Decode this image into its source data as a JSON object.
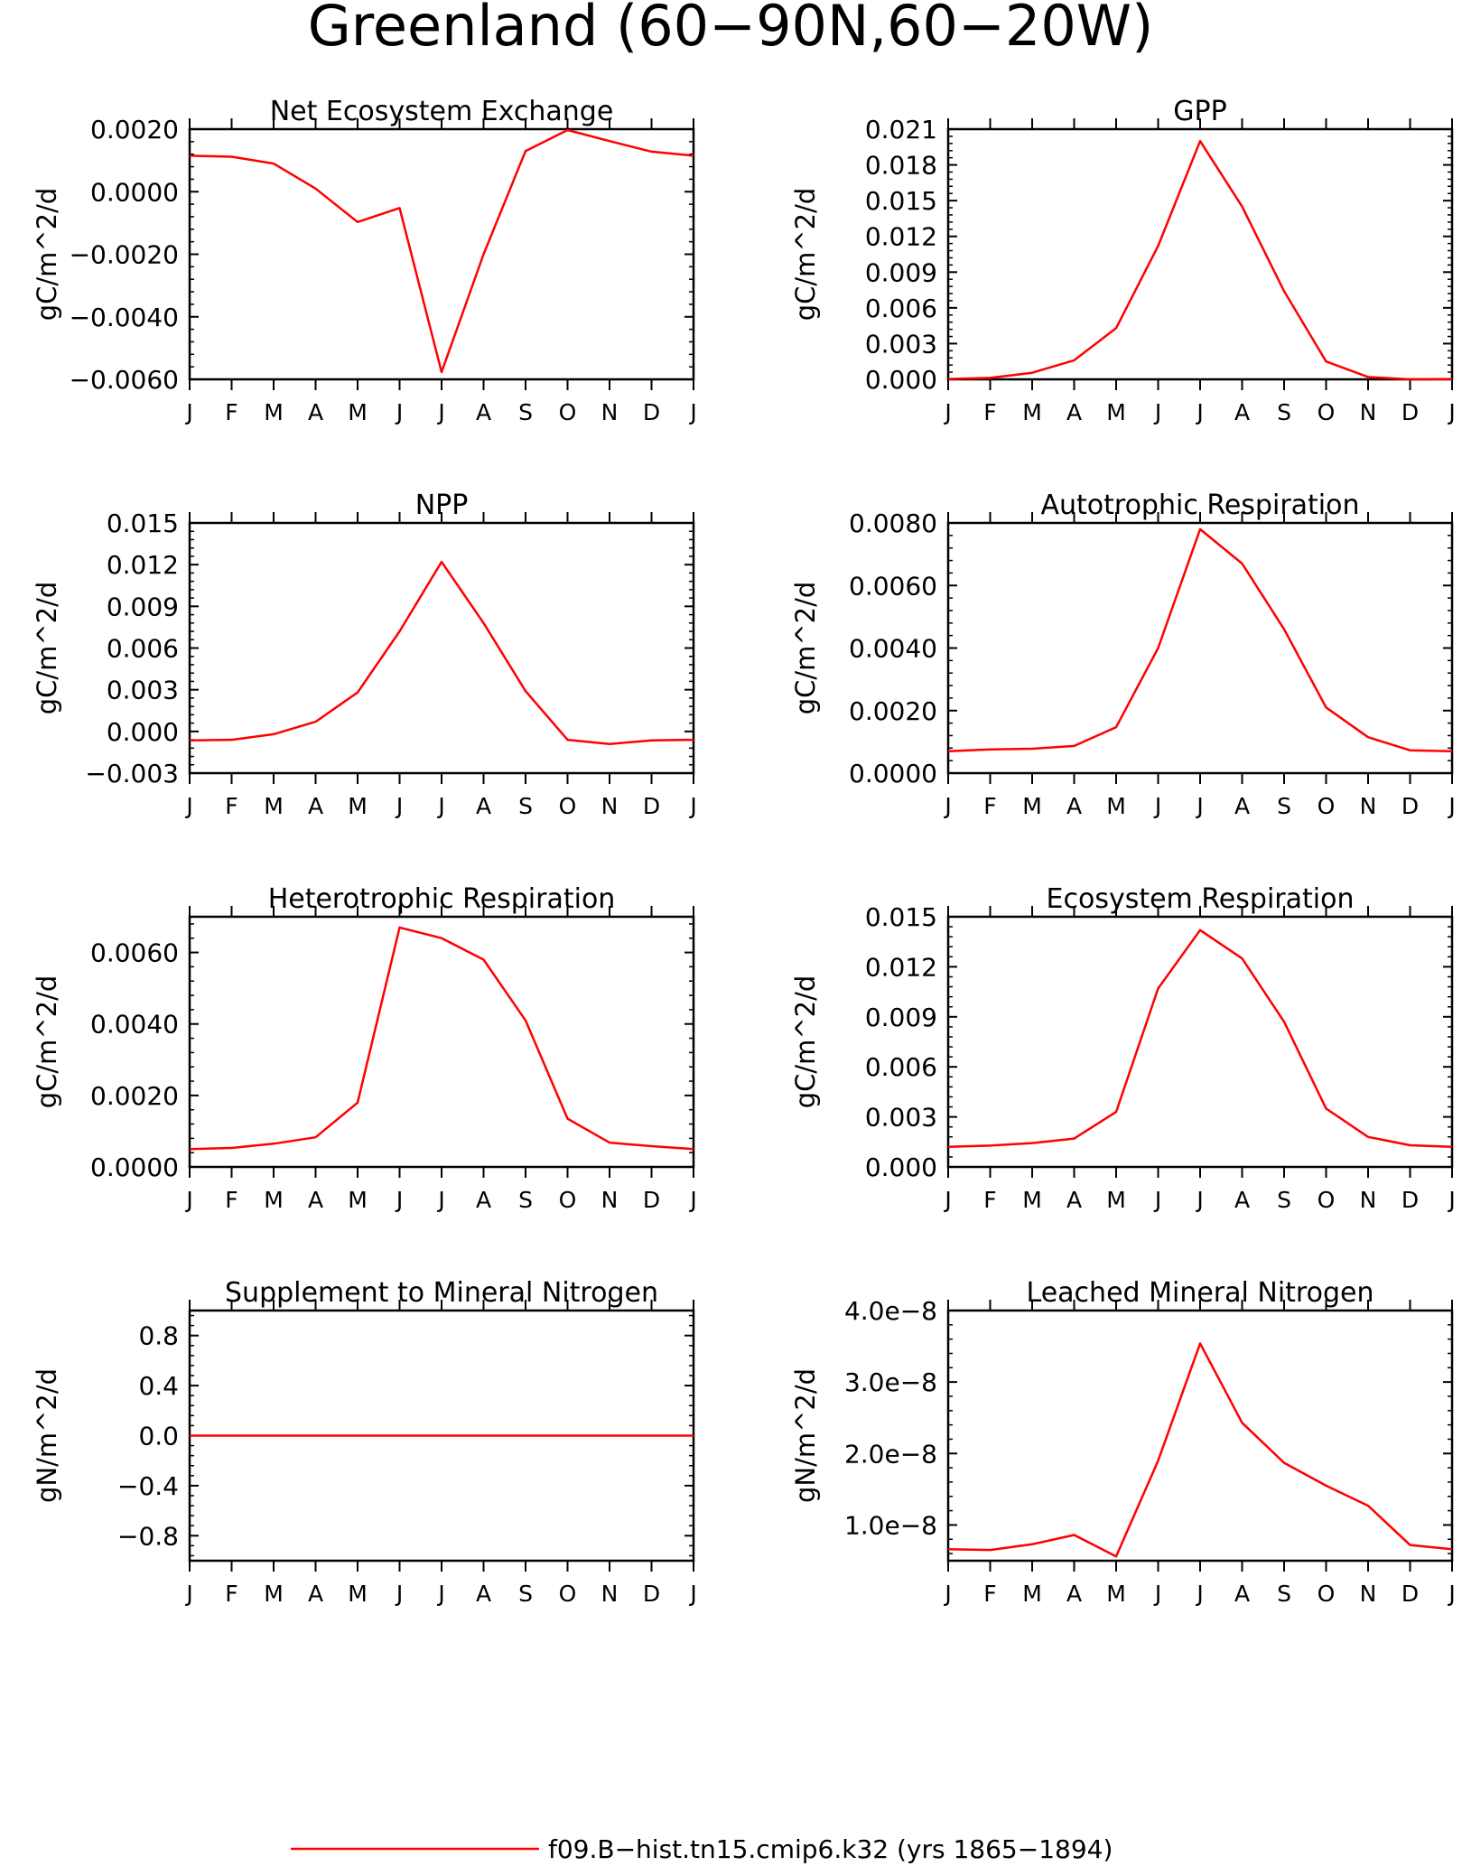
{
  "title": "Greenland (60−90N,60−20W)",
  "legend": {
    "label": "f09.B−hist.tn15.cmip6.k32 (yrs 1865−1894)",
    "color": "#ff0000"
  },
  "months": [
    "J",
    "F",
    "M",
    "A",
    "M",
    "J",
    "J",
    "A",
    "S",
    "O",
    "N",
    "D",
    "J"
  ],
  "line_color": "#ff0000",
  "chart_data": [
    {
      "type": "line",
      "title": "Net Ecosystem Exchange",
      "ylabel": "gC/m^2/d",
      "ylim": [
        -0.006,
        0.002
      ],
      "yticks": [
        -0.006,
        -0.004,
        -0.002,
        0.0,
        0.002
      ],
      "ytick_labels": [
        "−0.0060",
        "−0.0040",
        "−0.0020",
        "0.0000",
        "0.0020"
      ],
      "categories": [
        "J",
        "F",
        "M",
        "A",
        "M",
        "J",
        "J",
        "A",
        "S",
        "O",
        "N",
        "D",
        "J"
      ],
      "values": [
        0.00115,
        0.00112,
        0.0009,
        0.0001,
        -0.00097,
        -0.00052,
        -0.00577,
        -0.002,
        0.0013,
        0.00197,
        0.00162,
        0.00128,
        0.00115
      ]
    },
    {
      "type": "line",
      "title": "GPP",
      "ylabel": "gC/m^2/d",
      "ylim": [
        0.0,
        0.021
      ],
      "yticks": [
        0.0,
        0.003,
        0.006,
        0.009,
        0.012,
        0.015,
        0.018,
        0.021
      ],
      "ytick_labels": [
        "0.000",
        "0.003",
        "0.006",
        "0.009",
        "0.012",
        "0.015",
        "0.018",
        "0.021"
      ],
      "categories": [
        "J",
        "F",
        "M",
        "A",
        "M",
        "J",
        "J",
        "A",
        "S",
        "O",
        "N",
        "D",
        "J"
      ],
      "values": [
        3e-05,
        0.00012,
        0.00055,
        0.0016,
        0.0043,
        0.0112,
        0.02,
        0.0145,
        0.0074,
        0.0015,
        0.0002,
        0.0,
        3e-05
      ]
    },
    {
      "type": "line",
      "title": "NPP",
      "ylabel": "gC/m^2/d",
      "ylim": [
        -0.003,
        0.015
      ],
      "yticks": [
        -0.003,
        0.0,
        0.003,
        0.006,
        0.009,
        0.012,
        0.015
      ],
      "ytick_labels": [
        "−0.003",
        "0.000",
        "0.003",
        "0.006",
        "0.009",
        "0.012",
        "0.015"
      ],
      "categories": [
        "J",
        "F",
        "M",
        "A",
        "M",
        "J",
        "J",
        "A",
        "S",
        "O",
        "N",
        "D",
        "J"
      ],
      "values": [
        -0.00065,
        -0.0006,
        -0.0002,
        0.0007,
        0.0028,
        0.0072,
        0.0122,
        0.0078,
        0.0029,
        -0.0006,
        -0.0009,
        -0.00065,
        -0.0006
      ]
    },
    {
      "type": "line",
      "title": "Autotrophic Respiration",
      "ylabel": "gC/m^2/d",
      "ylim": [
        0.0,
        0.008
      ],
      "yticks": [
        0.0,
        0.002,
        0.004,
        0.006,
        0.008
      ],
      "ytick_labels": [
        "0.0000",
        "0.0020",
        "0.0040",
        "0.0060",
        "0.0080"
      ],
      "categories": [
        "J",
        "F",
        "M",
        "A",
        "M",
        "J",
        "J",
        "A",
        "S",
        "O",
        "N",
        "D",
        "J"
      ],
      "values": [
        0.0007,
        0.00076,
        0.00078,
        0.00087,
        0.00147,
        0.004,
        0.0078,
        0.0067,
        0.0046,
        0.0021,
        0.00115,
        0.00073,
        0.0007
      ]
    },
    {
      "type": "line",
      "title": "Heterotrophic Respiration",
      "ylabel": "gC/m^2/d",
      "ylim": [
        0.0,
        0.007
      ],
      "yticks": [
        0.0,
        0.002,
        0.004,
        0.006
      ],
      "ytick_labels": [
        "0.0000",
        "0.0020",
        "0.0040",
        "0.0060"
      ],
      "categories": [
        "J",
        "F",
        "M",
        "A",
        "M",
        "J",
        "J",
        "A",
        "S",
        "O",
        "N",
        "D",
        "J"
      ],
      "values": [
        0.0005,
        0.00053,
        0.00065,
        0.00083,
        0.0018,
        0.0067,
        0.0064,
        0.0058,
        0.0041,
        0.00135,
        0.00068,
        0.00058,
        0.0005
      ]
    },
    {
      "type": "line",
      "title": "Ecosystem Respiration",
      "ylabel": "gC/m^2/d",
      "ylim": [
        0.0,
        0.015
      ],
      "yticks": [
        0.0,
        0.003,
        0.006,
        0.009,
        0.012,
        0.015
      ],
      "ytick_labels": [
        "0.000",
        "0.003",
        "0.006",
        "0.009",
        "0.012",
        "0.015"
      ],
      "categories": [
        "J",
        "F",
        "M",
        "A",
        "M",
        "J",
        "J",
        "A",
        "S",
        "O",
        "N",
        "D",
        "J"
      ],
      "values": [
        0.0012,
        0.00128,
        0.00143,
        0.0017,
        0.0033,
        0.0107,
        0.0142,
        0.0125,
        0.0087,
        0.0035,
        0.0018,
        0.0013,
        0.0012
      ]
    },
    {
      "type": "line",
      "title": "Supplement to Mineral Nitrogen",
      "ylabel": "gN/m^2/d",
      "ylim": [
        -1.0,
        1.0
      ],
      "yticks": [
        -0.8,
        -0.4,
        0.0,
        0.4,
        0.8
      ],
      "ytick_labels": [
        "−0.8",
        "−0.4",
        "0.0",
        "0.4",
        "0.8"
      ],
      "categories": [
        "J",
        "F",
        "M",
        "A",
        "M",
        "J",
        "J",
        "A",
        "S",
        "O",
        "N",
        "D",
        "J"
      ],
      "values": [
        0,
        0,
        0,
        0,
        0,
        0,
        0,
        0,
        0,
        0,
        0,
        0,
        0
      ]
    },
    {
      "type": "line",
      "title": "Leached Mineral Nitrogen",
      "ylabel": "gN/m^2/d",
      "ylim": [
        5e-09,
        4e-08
      ],
      "yticks": [
        1e-08,
        2e-08,
        3e-08,
        4e-08
      ],
      "ytick_labels": [
        "1.0e−8",
        "2.0e−8",
        "3.0e−8",
        "4.0e−8"
      ],
      "categories": [
        "J",
        "F",
        "M",
        "A",
        "M",
        "J",
        "J",
        "A",
        "S",
        "O",
        "N",
        "D",
        "J"
      ],
      "values": [
        6.6e-09,
        6.5e-09,
        7.3e-09,
        8.6e-09,
        5.6e-09,
        1.9e-08,
        3.54e-08,
        2.43e-08,
        1.87e-08,
        1.55e-08,
        1.27e-08,
        7.2e-09,
        6.6e-09
      ]
    }
  ]
}
